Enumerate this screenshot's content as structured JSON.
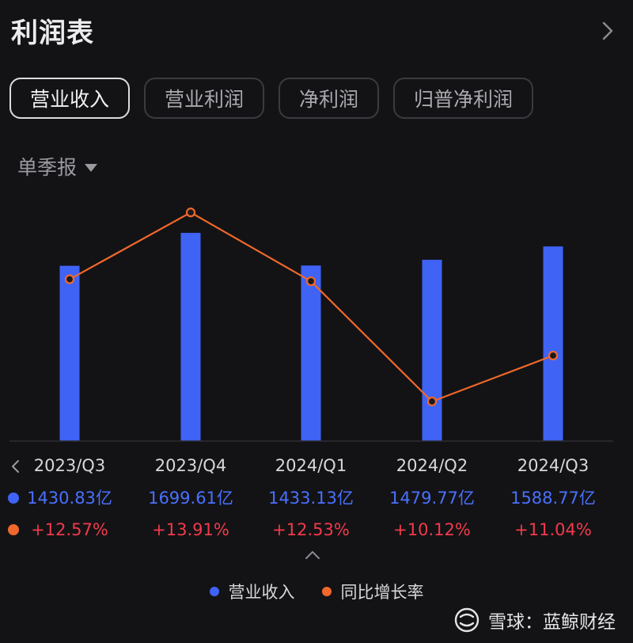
{
  "header": {
    "title": "利润表"
  },
  "tabs": [
    {
      "label": "营业收入",
      "active": true
    },
    {
      "label": "营业利润",
      "active": false
    },
    {
      "label": "净利润",
      "active": false
    },
    {
      "label": "归普净利润",
      "active": false
    }
  ],
  "period_selector": {
    "label": "单季报"
  },
  "colors": {
    "revenue": "#3f63f5",
    "growth": "#f0682a",
    "growth_value_text": "#f23a4a"
  },
  "chart_data": {
    "type": "bar",
    "categories": [
      "2023/Q3",
      "2023/Q4",
      "2024/Q1",
      "2024/Q2",
      "2024/Q3"
    ],
    "series": [
      {
        "name": "营业收入",
        "type": "bar",
        "unit": "亿",
        "values": [
          1430.83,
          1699.61,
          1433.13,
          1479.77,
          1588.77
        ],
        "labels": [
          "1430.83亿",
          "1699.61亿",
          "1433.13亿",
          "1479.77亿",
          "1588.77亿"
        ]
      },
      {
        "name": "同比增长率",
        "type": "line",
        "unit": "%",
        "values": [
          12.57,
          13.91,
          12.53,
          10.12,
          11.04
        ],
        "labels": [
          "+12.57%",
          "+13.91%",
          "+12.53%",
          "+10.12%",
          "+11.04%"
        ]
      }
    ],
    "bar_axis_range": [
      0,
      1700
    ],
    "line_axis_range": [
      9.5,
      14.2
    ],
    "grid": false,
    "legend_position": "bottom-center"
  },
  "watermark": {
    "text": "雪球：蓝鲸财经"
  }
}
